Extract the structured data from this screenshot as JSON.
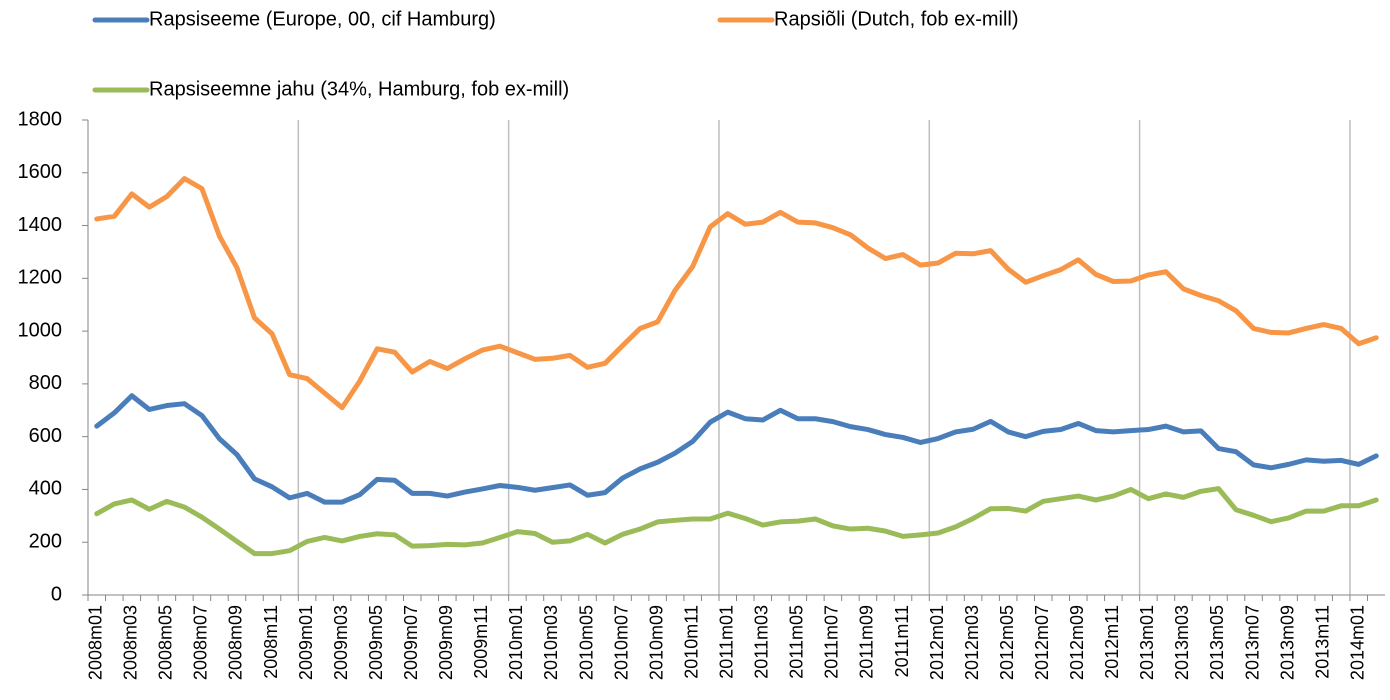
{
  "chart_data": {
    "type": "line",
    "categories": [
      "2008m01",
      null,
      "2008m03",
      null,
      "2008m05",
      null,
      "2008m07",
      null,
      "2008m09",
      null,
      "2008m11",
      null,
      "2009m01",
      null,
      "2009m03",
      null,
      "2009m05",
      null,
      "2009m07",
      null,
      "2009m09",
      null,
      "2009m11",
      null,
      "2010m01",
      null,
      "2010m03",
      null,
      "2010m05",
      null,
      "2010m07",
      null,
      "2010m09",
      null,
      "2010m11",
      null,
      "2011m01",
      null,
      "2011m03",
      null,
      "2011m05",
      null,
      "2011m07",
      null,
      "2011m09",
      null,
      "2011m11",
      null,
      "2012m01",
      null,
      "2012m03",
      null,
      "2012m05",
      null,
      "2012m07",
      null,
      "2012m09",
      null,
      "2012m11",
      null,
      "2013m01",
      null,
      "2013m03",
      null,
      "2013m05",
      null,
      "2013m07",
      null,
      "2013m09",
      null,
      "2013m11",
      null,
      "2014m01",
      null
    ],
    "series": [
      {
        "name": "Rapsiseeme (Europe, 00, cif Hamburg)",
        "color": "#4a7ebb",
        "values": [
          640,
          690,
          755,
          703,
          718,
          725,
          680,
          592,
          532,
          440,
          410,
          368,
          385,
          352,
          352,
          380,
          438,
          435,
          385,
          385,
          375,
          390,
          402,
          415,
          408,
          397,
          407,
          417,
          378,
          388,
          443,
          478,
          503,
          538,
          582,
          655,
          693,
          668,
          663,
          700,
          668,
          668,
          657,
          638,
          627,
          608,
          597,
          578,
          593,
          618,
          628,
          658,
          618,
          600,
          620,
          627,
          650,
          623,
          618,
          623,
          627,
          640,
          618,
          622,
          555,
          543,
          493,
          482,
          495,
          512,
          507,
          510,
          495,
          527
        ]
      },
      {
        "name": "Rapsiõli (Dutch, fob ex-mill)",
        "color": "#f79646",
        "values": [
          1425,
          1435,
          1520,
          1470,
          1510,
          1578,
          1540,
          1360,
          1240,
          1050,
          990,
          835,
          820,
          765,
          710,
          810,
          933,
          920,
          845,
          885,
          858,
          895,
          928,
          943,
          918,
          893,
          897,
          908,
          863,
          878,
          945,
          1010,
          1035,
          1155,
          1245,
          1395,
          1445,
          1405,
          1413,
          1450,
          1413,
          1410,
          1392,
          1365,
          1315,
          1275,
          1290,
          1250,
          1258,
          1295,
          1293,
          1305,
          1235,
          1185,
          1210,
          1233,
          1270,
          1215,
          1188,
          1190,
          1213,
          1225,
          1160,
          1135,
          1115,
          1077,
          1010,
          995,
          993,
          1010,
          1025,
          1010,
          952,
          975
        ]
      },
      {
        "name": "Rapsiseemne jahu (34%, Hamburg, fob ex-mill)",
        "color": "#9bbb59",
        "values": [
          308,
          345,
          360,
          325,
          355,
          333,
          295,
          250,
          203,
          157,
          157,
          168,
          203,
          218,
          205,
          222,
          232,
          228,
          185,
          187,
          192,
          190,
          197,
          218,
          240,
          233,
          200,
          205,
          230,
          197,
          230,
          250,
          277,
          283,
          288,
          288,
          310,
          290,
          265,
          277,
          280,
          288,
          262,
          250,
          253,
          242,
          222,
          228,
          235,
          258,
          290,
          327,
          328,
          318,
          355,
          365,
          375,
          360,
          375,
          400,
          365,
          383,
          370,
          393,
          403,
          323,
          302,
          278,
          292,
          318,
          318,
          338,
          338,
          360
        ]
      }
    ],
    "ylim": [
      0,
      1800
    ],
    "yticks": [
      0,
      200,
      400,
      600,
      800,
      1000,
      1200,
      1400,
      1600,
      1800
    ],
    "legend": "top"
  }
}
